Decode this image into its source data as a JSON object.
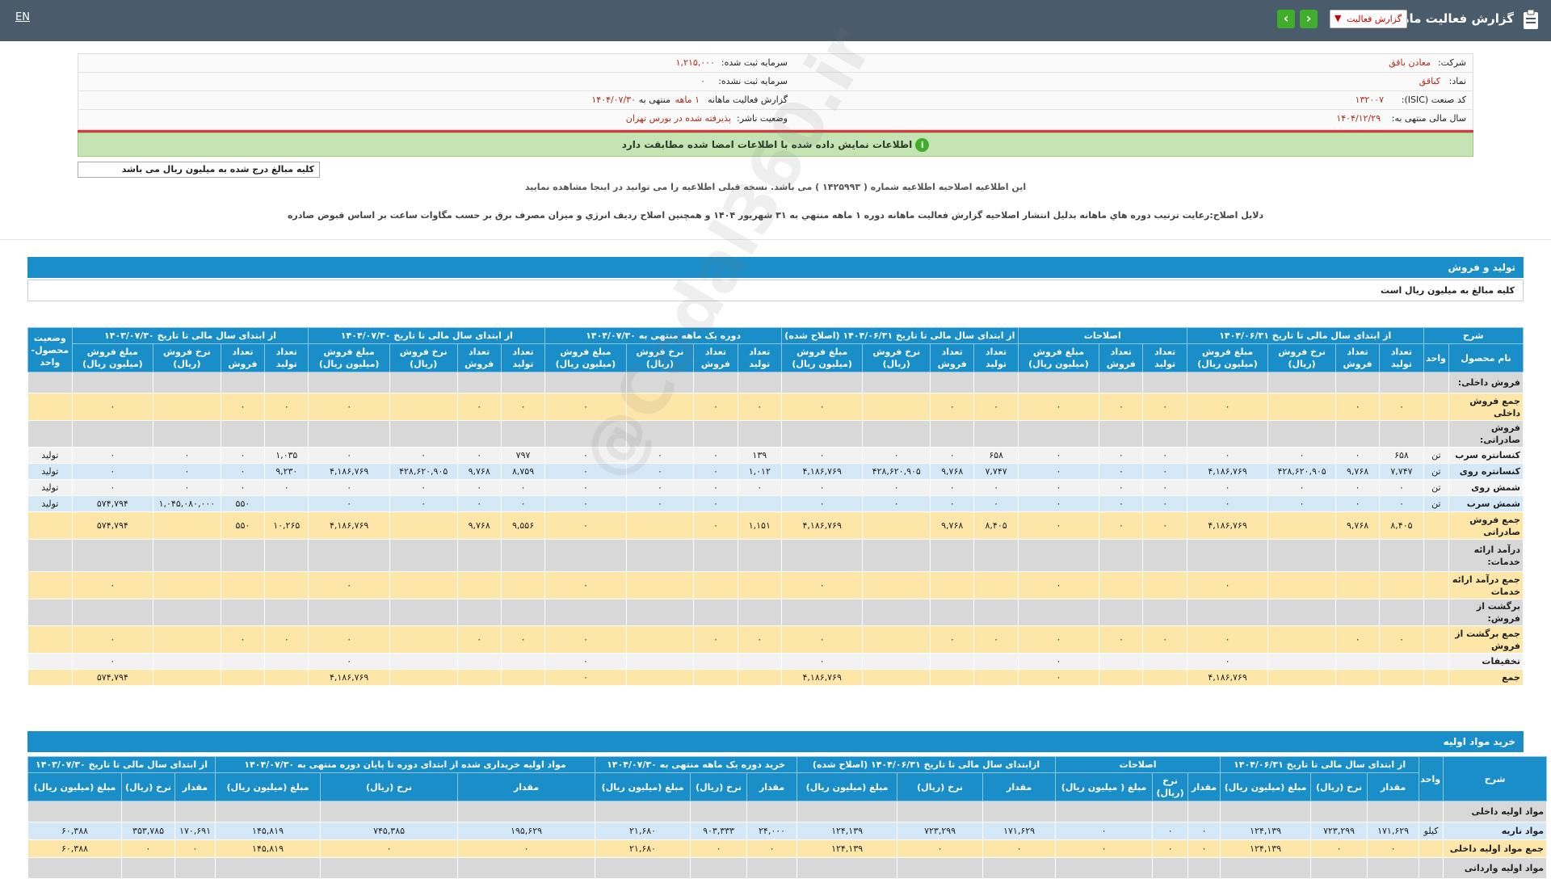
{
  "topbar": {
    "lang": "EN",
    "title": "گزارش فعالیت ماهانه",
    "select_value": "گزارش فعالیت",
    "prev_glyph": "‹",
    "next_glyph": "›"
  },
  "info": {
    "company_label": "شرکت:",
    "company": "معادن باقق",
    "symbol_label": "نماد:",
    "symbol": "کباقق",
    "isic_label": "کد صنعت (ISIC):",
    "isic": "۱۳۲۰۰۷",
    "fiscal_label": "سال مالی منتهی به:",
    "fiscal": "۱۴۰۴/۱۲/۲۹",
    "capital_label": "سرمایه ثبت شده:",
    "capital": "۱,۲۱۵,۰۰۰",
    "unreg_label": "سرمایه ثبت نشده:",
    "unreg": "۰",
    "period_label": "گزارش فعالیت ماهانه",
    "period_value": "۱ ماهه",
    "period_end": "منتهی به",
    "period_date": "۱۴۰۴/۰۷/۳۰",
    "status_label": "وضعیت ناشر:",
    "status": "پذیرفته شده در بورس تهران"
  },
  "alert": {
    "text": "اطلاعات نمایش داده شده با اطلاعات امضا شده مطابقت دارد",
    "icon": "info-icon"
  },
  "units_note": "کلیه مبالغ درج شده به میلیون ریال می باشد",
  "notice": "این اطلاعیه اصلاحیه اطلاعیه شماره ( ۱۴۲۵۹۹۳ ) می باشد. نسخه قبلی اطلاعیه را می توانید در اینجا مشاهده نمایید",
  "reason": "دلایل اصلاح:رعايت ترتيب دوره هاي ماهانه بدليل انتشار اصلاحيه گزارش فعاليت ماهانه دوره ۱ ماهه منتهي به ۳۱ شهريور ۱۴۰۴ و همچنين اصلاح رديف انرژي و ميزان مصرف برق بر حسب مگاوات ساعت بر اساس قبوض صادره",
  "sales": {
    "title": "تولید و فروش",
    "subtitle": "کلیه مبالغ به میلیون ریال است",
    "groups": [
      "شرح",
      "از ابتدای سال مالی تا تاریخ ۱۴۰۴/۰۶/۳۱",
      "اصلاحات",
      "از ابتدای سال مالی تا تاریخ ۱۴۰۴/۰۶/۳۱ (اصلاح شده)",
      "دوره یک ماهه منتهی به ۱۴۰۴/۰۷/۳۰",
      "از ابتدای سال مالی تا تاریخ ۱۴۰۴/۰۷/۳۰",
      "از ابتدای سال مالی تا تاریخ ۱۴۰۳/۰۷/۳۰",
      "وضعیت محصول-واحد"
    ],
    "cols": [
      "نام محصول",
      "واحد",
      "تعداد تولید",
      "تعداد فروش",
      "نرخ فروش (ریال)",
      "مبلغ فروش (میلیون ریال)",
      "تعداد تولید",
      "تعداد فروش",
      "مبلغ فروش (میلیون ریال)",
      "تعداد تولید",
      "تعداد فروش",
      "نرخ فروش (ریال)",
      "مبلغ فروش (میلیون ریال)",
      "تعداد تولید",
      "تعداد فروش",
      "نرخ فروش (ریال)",
      "مبلغ فروش (میلیون ریال)",
      "تعداد تولید",
      "تعداد فروش",
      "نرخ فروش (ریال)",
      "مبلغ فروش (میلیون ریال)",
      "تعداد تولید",
      "تعداد فروش",
      "نرخ فروش (ریال)",
      "مبلغ فروش (میلیون ریال)"
    ],
    "rows": [
      {
        "style": "sect",
        "cells": [
          "فروش داخلی:",
          "",
          "",
          "",
          "",
          "",
          "",
          "",
          "",
          "",
          "",
          "",
          "",
          "",
          "",
          "",
          "",
          "",
          "",
          "",
          "",
          "",
          "",
          "",
          "",
          ""
        ]
      },
      {
        "style": "yellow",
        "cells": [
          "جمع فروش داخلی",
          "",
          "۰",
          "۰",
          "",
          "۰",
          "۰",
          "۰",
          "۰",
          "۰",
          "۰",
          "",
          "۰",
          "۰",
          "۰",
          "",
          "۰",
          "۰",
          "۰",
          "",
          "۰",
          "۰",
          "۰",
          "",
          "۰",
          ""
        ]
      },
      {
        "style": "sect",
        "cells": [
          "فروش صادراتی:",
          "",
          "",
          "",
          "",
          "",
          "",
          "",
          "",
          "",
          "",
          "",
          "",
          "",
          "",
          "",
          "",
          "",
          "",
          "",
          "",
          "",
          "",
          "",
          "",
          ""
        ]
      },
      {
        "style": "white",
        "cells": [
          "کنسانتره سرب",
          "تن",
          "۶۵۸",
          "۰",
          "۰",
          "۰",
          "۰",
          "۰",
          "۰",
          "۶۵۸",
          "۰",
          "۰",
          "۰",
          "۱۳۹",
          "۰",
          "۰",
          "۰",
          "۷۹۷",
          "۰",
          "۰",
          "۰",
          "۱,۰۳۵",
          "۰",
          "۰",
          "۰",
          "تولید"
        ]
      },
      {
        "style": "blue",
        "cells": [
          "کنسانتره روی",
          "تن",
          "۷,۷۴۷",
          "۹,۷۶۸",
          "۴۲۸,۶۲۰,۹۰۵",
          "۴,۱۸۶,۷۶۹",
          "۰",
          "۰",
          "۰",
          "۷,۷۴۷",
          "۹,۷۶۸",
          "۴۲۸,۶۲۰,۹۰۵",
          "۴,۱۸۶,۷۶۹",
          "۱,۰۱۲",
          "۰",
          "۰",
          "۰",
          "۸,۷۵۹",
          "۹,۷۶۸",
          "۴۲۸,۶۲۰,۹۰۵",
          "۴,۱۸۶,۷۶۹",
          "۹,۲۳۰",
          "۰",
          "۰",
          "۰",
          "تولید"
        ]
      },
      {
        "style": "white",
        "cells": [
          "شمش روی",
          "تن",
          "۰",
          "۰",
          "۰",
          "۰",
          "۰",
          "۰",
          "۰",
          "۰",
          "۰",
          "۰",
          "۰",
          "۰",
          "۰",
          "۰",
          "۰",
          "۰",
          "۰",
          "۰",
          "۰",
          "۰",
          "۰",
          "۰",
          "۰",
          "تولید"
        ]
      },
      {
        "style": "blue",
        "cells": [
          "شمش سرب",
          "تن",
          "۰",
          "۰",
          "۰",
          "۰",
          "۰",
          "۰",
          "۰",
          "۰",
          "۰",
          "۰",
          "۰",
          "",
          "۰",
          "۰",
          "۰",
          "۰",
          "۰",
          "۰",
          "۰",
          "",
          "۵۵۰",
          "۱,۰۴۵,۰۸۰,۰۰۰",
          "۵۷۴,۷۹۴",
          "تولید"
        ]
      },
      {
        "style": "yellow",
        "cells": [
          "جمع فروش صادراتی",
          "",
          "۸,۴۰۵",
          "۹,۷۶۸",
          "",
          "۴,۱۸۶,۷۶۹",
          "۰",
          "۰",
          "۰",
          "۸,۴۰۵",
          "۹,۷۶۸",
          "",
          "۴,۱۸۶,۷۶۹",
          "۱,۱۵۱",
          "۰",
          "",
          "۰",
          "۹,۵۵۶",
          "۹,۷۶۸",
          "",
          "۴,۱۸۶,۷۶۹",
          "۱۰,۲۶۵",
          "۵۵۰",
          "",
          "۵۷۴,۷۹۴",
          ""
        ]
      },
      {
        "style": "sect",
        "cells": [
          "درآمد ارائه خدمات:",
          "",
          "",
          "",
          "",
          "",
          "",
          "",
          "",
          "",
          "",
          "",
          "",
          "",
          "",
          "",
          "",
          "",
          "",
          "",
          "",
          "",
          "",
          "",
          "",
          ""
        ]
      },
      {
        "style": "yellow",
        "cells": [
          "جمع درآمد ارائه خدمات",
          "",
          "",
          "",
          "",
          "۰",
          "",
          "",
          "۰",
          "",
          "",
          "",
          "۰",
          "",
          "",
          "",
          "۰",
          "",
          "",
          "",
          "۰",
          "",
          "",
          "",
          "۰",
          ""
        ]
      },
      {
        "style": "sect",
        "cells": [
          "برگشت از فروش:",
          "",
          "",
          "",
          "",
          "",
          "",
          "",
          "",
          "",
          "",
          "",
          "",
          "",
          "",
          "",
          "",
          "",
          "",
          "",
          "",
          "",
          "",
          "",
          "",
          ""
        ]
      },
      {
        "style": "yellow",
        "cells": [
          "جمع برگشت از فروش",
          "",
          "۰",
          "۰",
          "",
          "۰",
          "۰",
          "۰",
          "۰",
          "۰",
          "۰",
          "",
          "۰",
          "۰",
          "۰",
          "",
          "۰",
          "۰",
          "۰",
          "",
          "۰",
          "۰",
          "۰",
          "",
          "۰",
          ""
        ]
      },
      {
        "style": "white",
        "cells": [
          "تخفیفات",
          "",
          "",
          "",
          "",
          "۰",
          "",
          "",
          "۰",
          "",
          "",
          "",
          "۰",
          "",
          "",
          "",
          "۰",
          "",
          "",
          "",
          "۰",
          "",
          "",
          "",
          "۰",
          ""
        ]
      },
      {
        "style": "yellow",
        "cells": [
          "جمع",
          "",
          "",
          "",
          "",
          "۴,۱۸۶,۷۶۹",
          "",
          "",
          "۰",
          "",
          "",
          "",
          "۴,۱۸۶,۷۶۹",
          "",
          "",
          "",
          "۰",
          "",
          "",
          "",
          "۴,۱۸۶,۷۶۹",
          "",
          "",
          "",
          "۵۷۴,۷۹۴",
          ""
        ]
      }
    ]
  },
  "materials": {
    "title": "خرید مواد اولیه",
    "groups": [
      "شرح",
      "واحد",
      "از ابتدای سال مالی تا تاریخ ۱۴۰۴/۰۶/۳۱",
      "اصلاحات",
      "ازابتدای سال مالی تا تاریخ ۱۴۰۴/۰۶/۳۱ (اصلاح شده)",
      "خرید دوره یک ماهه منتهی به ۱۴۰۴/۰۷/۳۰",
      "مواد اولیه خریداری شده از ابتدای دوره تا پایان دوره منتهی به ۱۴۰۴/۰۷/۳۰",
      "از ابتدای سال مالی تا تاریخ ۱۴۰۳/۰۷/۳۰"
    ],
    "cols": [
      "مقدار",
      "نرخ (ریال)",
      "مبلغ (میلیون ریال)",
      "مقدار",
      "نرخ (ریال)",
      "مبلغ ( میلیون ریال)",
      "مقدار",
      "نرخ (ریال)",
      "مبلغ (میلیون ریال)",
      "مقدار",
      "نرخ (ریال)",
      "مبلغ (میلیون ریال)",
      "مقدار",
      "نرخ (ریال)",
      "مبلغ (میلیون ریال)",
      "مقدار",
      "نرخ (ریال)",
      "مبلغ (میلیون ریال)"
    ],
    "rows": [
      {
        "style": "sect",
        "cells": [
          "مواد اولیه داخلی",
          "",
          "",
          "",
          "",
          "",
          "",
          "",
          "",
          "",
          "",
          "",
          "",
          "",
          "",
          "",
          "",
          "",
          "",
          ""
        ]
      },
      {
        "style": "blue",
        "cells": [
          "مواد ناریه",
          "کیلو",
          "۱۷۱,۶۲۹",
          "۷۲۳,۲۹۹",
          "۱۲۴,۱۳۹",
          "۰",
          "۰",
          "۰",
          "۱۷۱,۶۲۹",
          "۷۲۳,۲۹۹",
          "۱۲۴,۱۳۹",
          "۲۴,۰۰۰",
          "۹۰۳,۳۳۳",
          "۲۱,۶۸۰",
          "۱۹۵,۶۲۹",
          "۷۴۵,۳۸۵",
          "۱۴۵,۸۱۹",
          "۱۷۰,۶۹۱",
          "۳۵۳,۷۸۵",
          "۶۰,۳۸۸"
        ]
      },
      {
        "style": "yellow",
        "cells": [
          "جمع مواد اولیه داخلی",
          "",
          "۰",
          "۰",
          "۱۲۴,۱۳۹",
          "۰",
          "۰",
          "۰",
          "۰",
          "۰",
          "۱۲۴,۱۳۹",
          "۰",
          "۰",
          "۲۱,۶۸۰",
          "۰",
          "۰",
          "۱۴۵,۸۱۹",
          "۰",
          "۰",
          "۶۰,۳۸۸"
        ]
      },
      {
        "style": "sect",
        "cells": [
          "مواد اولیه وارداتی",
          "",
          "",
          "",
          "",
          "",
          "",
          "",
          "",
          "",
          "",
          "",
          "",
          "",
          "",
          "",
          "",
          "",
          "",
          ""
        ]
      }
    ]
  },
  "watermark": "@Codal360.ir"
}
